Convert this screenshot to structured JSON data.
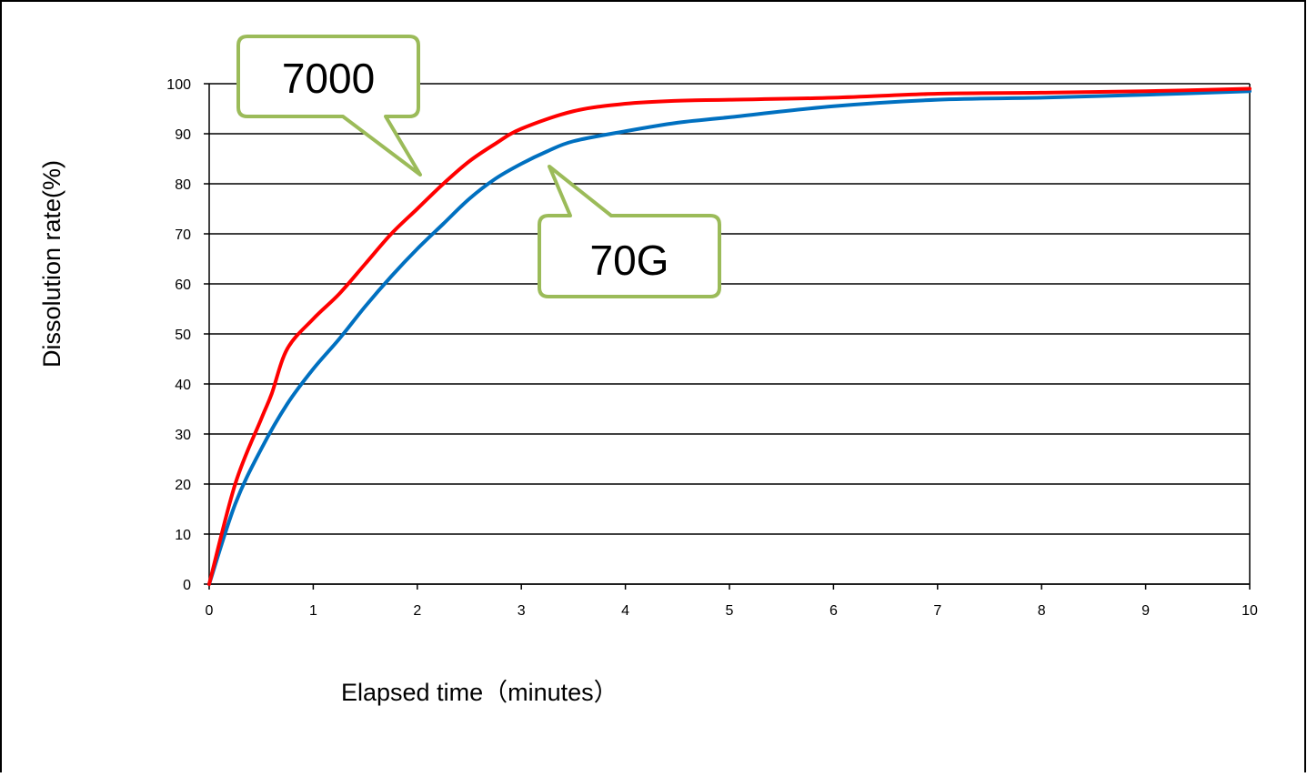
{
  "chart_data": {
    "type": "line",
    "title": "",
    "xlabel": "Elapsed time（minutes）",
    "ylabel": "Dissolution rate(%)",
    "xlim": [
      0,
      10
    ],
    "ylim": [
      0,
      100
    ],
    "x_ticks": [
      "0",
      "1",
      "2",
      "3",
      "4",
      "5",
      "6",
      "7",
      "8",
      "9",
      "10"
    ],
    "y_ticks": [
      "0",
      "10",
      "20",
      "30",
      "40",
      "50",
      "60",
      "70",
      "80",
      "90",
      "100"
    ],
    "grid": "horizontal",
    "legend": "none",
    "series": [
      {
        "name": "7000",
        "color": "#ff0000",
        "x": [
          0,
          0.25,
          0.5,
          0.6,
          0.75,
          1.0,
          1.25,
          1.5,
          1.75,
          2.0,
          2.25,
          2.5,
          2.75,
          3.0,
          3.5,
          4.0,
          4.5,
          5.0,
          6.0,
          7.0,
          8.0,
          9.0,
          10.0
        ],
        "y": [
          0,
          20,
          33,
          38,
          47,
          53,
          58,
          64,
          70,
          75,
          80,
          84.5,
          88,
          91,
          94.5,
          96,
          96.6,
          96.8,
          97.2,
          98,
          98.2,
          98.5,
          99
        ]
      },
      {
        "name": "70G",
        "color": "#0070c0",
        "x": [
          0,
          0.25,
          0.5,
          0.75,
          1.0,
          1.25,
          1.5,
          1.75,
          2.0,
          2.25,
          2.5,
          2.75,
          3.0,
          3.25,
          3.5,
          4.0,
          4.5,
          5.0,
          6.0,
          7.0,
          8.0,
          9.0,
          10.0
        ],
        "y": [
          0,
          16,
          27,
          36,
          43,
          49,
          55.5,
          61.5,
          67,
          72,
          77,
          81,
          84,
          86.5,
          88.5,
          90.5,
          92.2,
          93.3,
          95.5,
          96.8,
          97.2,
          97.8,
          98.5
        ]
      }
    ],
    "annotations": [
      {
        "text": "7000",
        "target_series": "7000",
        "style": "callout",
        "border_color": "#9bbb59"
      },
      {
        "text": "70G",
        "target_series": "70G",
        "style": "callout",
        "border_color": "#9bbb59"
      }
    ]
  }
}
